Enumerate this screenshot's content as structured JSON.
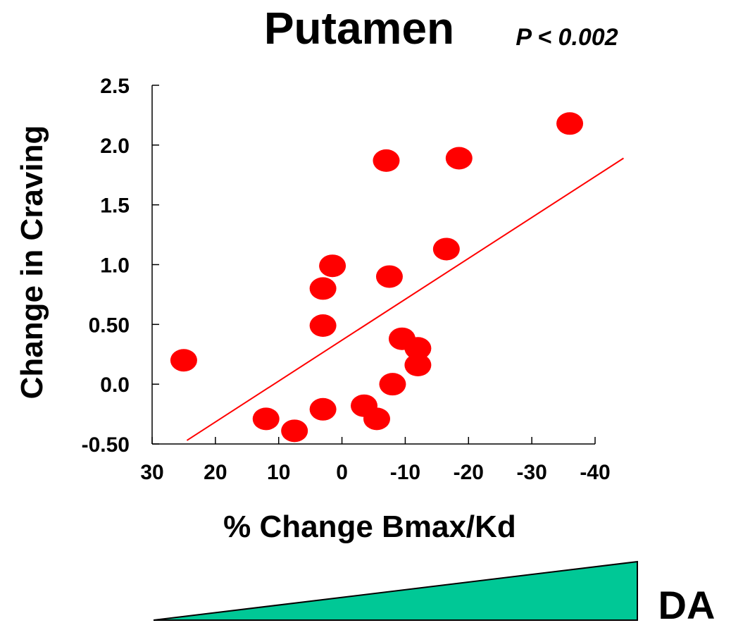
{
  "chart_data": {
    "type": "scatter",
    "title": "Putamen",
    "annotation": "P < 0.002",
    "xlabel": "% Change Bmax/Kd",
    "ylabel": "Change in Craving",
    "x_ticks": [
      30,
      20,
      10,
      0,
      -10,
      -20,
      -30,
      -40
    ],
    "x_tick_labels": [
      "30",
      "20",
      "10",
      "0",
      "-10",
      "-20",
      "-30",
      "-40"
    ],
    "y_ticks": [
      -0.5,
      0.0,
      0.5,
      1.0,
      1.5,
      2.0,
      2.5
    ],
    "y_tick_labels": [
      "-0.50",
      "0.0",
      "0.50",
      "1.0",
      "1.5",
      "2.0",
      "2.5"
    ],
    "xlim": [
      30,
      -40
    ],
    "ylim": [
      -0.5,
      2.5
    ],
    "x_reversed": true,
    "grid": false,
    "point_color": "#ff0000",
    "line_color": "#ff0000",
    "points": [
      {
        "x": 25,
        "y": 0.2
      },
      {
        "x": -7,
        "y": 1.87
      },
      {
        "x": -18.5,
        "y": 1.89
      },
      {
        "x": -36,
        "y": 2.18
      },
      {
        "x": -16.5,
        "y": 1.13
      },
      {
        "x": 1.5,
        "y": 0.99
      },
      {
        "x": -7.5,
        "y": 0.9
      },
      {
        "x": 3,
        "y": 0.8
      },
      {
        "x": 3,
        "y": 0.49
      },
      {
        "x": -9.5,
        "y": 0.38
      },
      {
        "x": -12,
        "y": 0.3
      },
      {
        "x": -12,
        "y": 0.16
      },
      {
        "x": -8,
        "y": 0.0
      },
      {
        "x": 12,
        "y": -0.29
      },
      {
        "x": 3,
        "y": -0.21
      },
      {
        "x": -3.5,
        "y": -0.18
      },
      {
        "x": -5.5,
        "y": -0.29
      },
      {
        "x": 7.5,
        "y": -0.39
      }
    ],
    "fit_line": {
      "x": [
        24.5,
        -44.5
      ],
      "y": [
        -0.47,
        1.89
      ]
    }
  },
  "wedge": {
    "label": "DA",
    "color": "#00c896"
  }
}
